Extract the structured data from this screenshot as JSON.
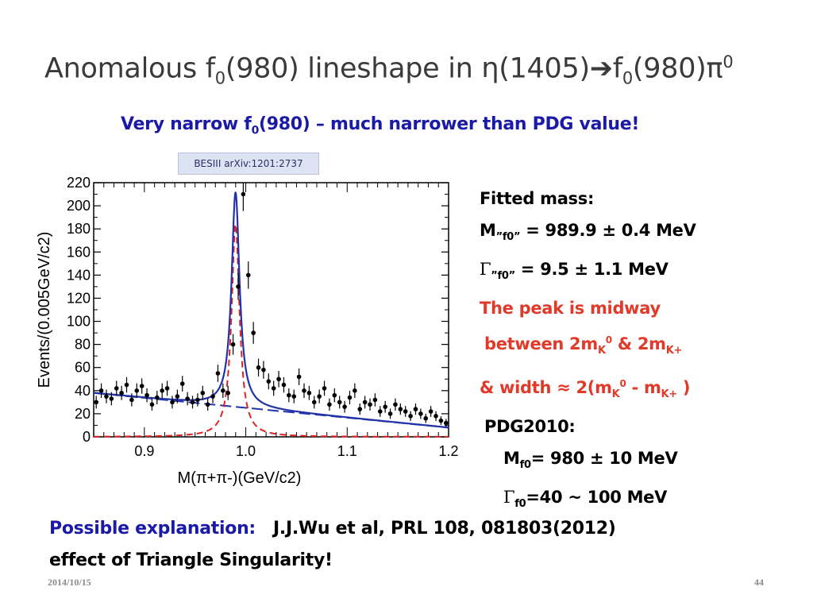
{
  "slide": {
    "title_text": "Anomalous f",
    "title_sub": "0",
    "title_mid": "(980) lineshape in η(1405)➔f",
    "title_sub2": "0",
    "title_end": "(980)π",
    "title_sup": "0",
    "subtitle_pre": "Very narrow f",
    "subtitle_sub": "0",
    "subtitle_post": "(980) – much narrower than PDG value!",
    "ref_badge": "BESIII arXiv:1201:2737",
    "notes": {
      "fitted_mass": "Fitted mass:",
      "m_label": "M",
      "m_sub": "”f0”",
      "m_value": " = 989.9 ± 0.4 MeV",
      "g_label": "Γ",
      "g_sub": "”f0”",
      "g_value": " = 9.5 ± 1.1 MeV",
      "peak_line1": "The peak is midway",
      "peak_line2_a": " between 2m",
      "peak_line2_sub1": "K",
      "peak_line2_sup1": "0",
      "peak_line2_b": " & 2m",
      "peak_line2_sub2": "K+",
      "peak_line3_a": "& width ≈ 2(m",
      "peak_line3_sub1": "K",
      "peak_line3_sup1": "0",
      "peak_line3_b": " - m",
      "peak_line3_sub2": "K+",
      "peak_line3_c": " )",
      "pdg_header": "PDG2010:",
      "pdg_m_label": "M",
      "pdg_m_sub": "f0",
      "pdg_m_value": "= 980 ± 10 MeV",
      "pdg_g_label": "Γ",
      "pdg_g_sub": "f0",
      "pdg_g_value": "=40 ~ 100 MeV"
    },
    "explanation_label": "Possible explanation:",
    "explanation_ref": "J.J.Wu et al, PRL 108, 081803(2012)",
    "explanation_line2": " effect of Triangle Singularity!",
    "date": "2014/10/15",
    "page_number": "44"
  },
  "chart_data": {
    "type": "scatter",
    "xlabel": "M(π+π-)(GeV/c2)",
    "ylabel": "Events/(0.005GeV/c2)",
    "xlim": [
      0.85,
      1.2
    ],
    "ylim": [
      0,
      220
    ],
    "x_ticks": [
      "0.9",
      "1.0",
      "1.1",
      "1.2"
    ],
    "x_tick_values": [
      0.9,
      1.0,
      1.1,
      1.2
    ],
    "y_ticks": [
      "0",
      "20",
      "40",
      "60",
      "80",
      "100",
      "120",
      "140",
      "160",
      "180",
      "200",
      "220"
    ],
    "y_tick_values": [
      0,
      20,
      40,
      60,
      80,
      100,
      120,
      140,
      160,
      180,
      200,
      220
    ],
    "colors": {
      "fit": "#2233aa",
      "signal": "#dd2222",
      "background": "#2233aa",
      "points": "#000000"
    },
    "series": [
      {
        "kind": "data_points",
        "x": [
          0.8525,
          0.8575,
          0.8625,
          0.8675,
          0.8725,
          0.8775,
          0.8825,
          0.8875,
          0.8925,
          0.8975,
          0.9025,
          0.9075,
          0.9125,
          0.9175,
          0.9225,
          0.9275,
          0.9325,
          0.9375,
          0.9425,
          0.9475,
          0.9525,
          0.9575,
          0.9625,
          0.9675,
          0.9725,
          0.9775,
          0.9825,
          0.9875,
          0.9925,
          0.9975,
          1.0025,
          1.0075,
          1.0125,
          1.0175,
          1.0225,
          1.0275,
          1.0325,
          1.0375,
          1.0425,
          1.0475,
          1.0525,
          1.0575,
          1.0625,
          1.0675,
          1.0725,
          1.0775,
          1.0825,
          1.0875,
          1.0925,
          1.0975,
          1.1025,
          1.1075,
          1.1125,
          1.1175,
          1.1225,
          1.1275,
          1.1325,
          1.1375,
          1.1425,
          1.1475,
          1.1525,
          1.1575,
          1.1625,
          1.1675,
          1.1725,
          1.1775,
          1.1825,
          1.1875,
          1.1925,
          1.1975
        ],
        "y": [
          30,
          40,
          35,
          33,
          42,
          38,
          45,
          32,
          40,
          44,
          36,
          28,
          34,
          40,
          42,
          30,
          35,
          46,
          33,
          30,
          32,
          38,
          28,
          35,
          55,
          40,
          38,
          80,
          130,
          210,
          140,
          90,
          60,
          58,
          48,
          42,
          50,
          45,
          36,
          35,
          52,
          40,
          38,
          30,
          35,
          42,
          28,
          36,
          30,
          26,
          34,
          40,
          24,
          30,
          28,
          32,
          22,
          26,
          20,
          28,
          24,
          22,
          18,
          24,
          20,
          16,
          22,
          18,
          14,
          12
        ]
      },
      {
        "kind": "total_fit",
        "peak_x": 0.9899,
        "peak_y": 212
      },
      {
        "kind": "signal",
        "peak_x": 0.9899,
        "peak_y": 184
      },
      {
        "kind": "background",
        "x": [
          0.85,
          1.2
        ],
        "y": [
          38,
          8
        ]
      }
    ]
  }
}
